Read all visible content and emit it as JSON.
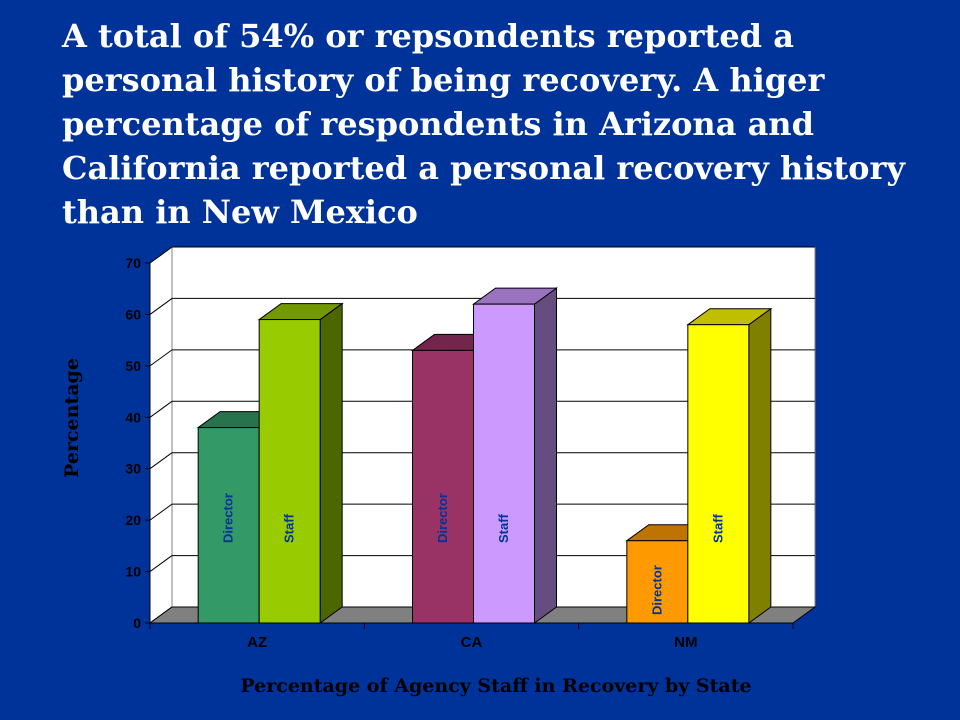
{
  "title": "A total of 54% or repsondents reported a personal history of being recovery.  A higer percentage of respondents in Arizona and California reported a personal recovery history than in New Mexico",
  "chart_data": {
    "type": "bar",
    "style": "3d-clustered-column",
    "categories": [
      "AZ",
      "CA",
      "NM"
    ],
    "y_ticks": [
      "0",
      "10",
      "20",
      "30",
      "40",
      "50",
      "60",
      "70"
    ],
    "ylim": [
      0,
      70
    ],
    "ylabel": "Percentage",
    "xlabel": "Percentage of Agency Staff in Recovery by State",
    "grid": true,
    "legend": "none",
    "bars": [
      {
        "category": "AZ",
        "label": "Director",
        "value": 38,
        "color": "#339966",
        "label_color": "#003399"
      },
      {
        "category": "AZ",
        "label": "Staff",
        "value": 59,
        "color": "#99CC00",
        "label_color": "#003399"
      },
      {
        "category": "CA",
        "label": "Director",
        "value": 53,
        "color": "#993366",
        "label_color": "#003399"
      },
      {
        "category": "CA",
        "label": "Staff",
        "value": 62,
        "color": "#CC99FF",
        "label_color": "#003399"
      },
      {
        "category": "NM",
        "label": "Director",
        "value": 16,
        "color": "#FF9900",
        "label_color": "#003399"
      },
      {
        "category": "NM",
        "label": "Staff",
        "value": 58,
        "color": "#FFFF00",
        "label_color": "#003399"
      }
    ]
  }
}
